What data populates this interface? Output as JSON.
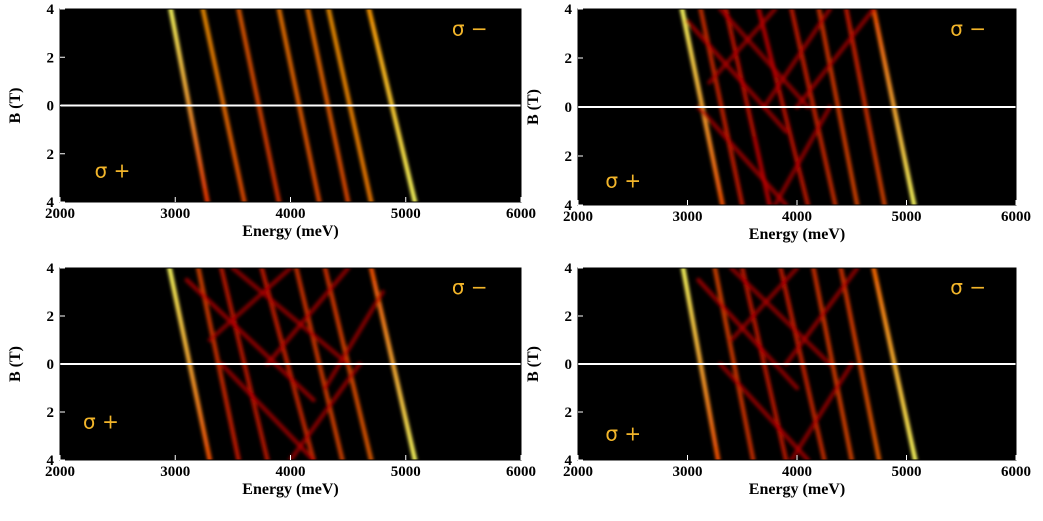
{
  "chart_data": [
    {
      "type": "heatmap",
      "panel": "top-left",
      "xlabel": "Energy (meV)",
      "ylabel": "B (T)",
      "xlim": [
        2000,
        6000
      ],
      "ylim": [
        -4,
        4
      ],
      "xticks": [
        "2000",
        "3000",
        "4000",
        "5000",
        "6000"
      ],
      "yticks": [
        "4",
        "2",
        "0",
        "2",
        "4"
      ],
      "zero_line": true,
      "colormap": "black-red-yellow",
      "annotations": [
        {
          "text": "σ −",
          "x": 5400,
          "y": 3.2
        },
        {
          "text": "σ +",
          "x": 2300,
          "y": -2.7
        }
      ],
      "series": [
        {
          "points": [
            [
              2960,
              4
            ],
            [
              3280,
              -4
            ]
          ],
          "intensity": [
            1.0,
            0.55
          ]
        },
        {
          "points": [
            [
              3240,
              4
            ],
            [
              3600,
              -4
            ]
          ],
          "intensity": [
            0.75,
            0.6
          ]
        },
        {
          "points": [
            [
              3550,
              4
            ],
            [
              3900,
              -4
            ]
          ],
          "intensity": [
            0.65,
            0.55
          ]
        },
        {
          "points": [
            [
              3900,
              4
            ],
            [
              4250,
              -4
            ]
          ],
          "intensity": [
            0.7,
            0.6
          ]
        },
        {
          "points": [
            [
              4150,
              4
            ],
            [
              4500,
              -4
            ]
          ],
          "intensity": [
            0.7,
            0.6
          ]
        },
        {
          "points": [
            [
              4330,
              4
            ],
            [
              4700,
              -4
            ]
          ],
          "intensity": [
            0.75,
            0.7
          ]
        },
        {
          "points": [
            [
              4680,
              4
            ],
            [
              5080,
              -4
            ]
          ],
          "intensity": [
            0.75,
            1.0
          ]
        }
      ]
    },
    {
      "type": "heatmap",
      "panel": "top-right",
      "xlabel": "Energy (meV)",
      "ylabel": "B (T)",
      "xlim": [
        2000,
        6000
      ],
      "ylim": [
        -4,
        4
      ],
      "xticks": [
        "2000",
        "3000",
        "4000",
        "5000",
        "6000"
      ],
      "yticks": [
        "4",
        "2",
        "0",
        "2",
        "4"
      ],
      "zero_line": true,
      "colormap": "black-red-yellow",
      "annotations": [
        {
          "text": "σ −",
          "x": 5400,
          "y": 3.2
        },
        {
          "text": "σ +",
          "x": 2250,
          "y": -3.0
        }
      ],
      "series": [
        {
          "points": [
            [
              2950,
              4
            ],
            [
              3320,
              -4
            ]
          ],
          "intensity": [
            1.0,
            0.6
          ]
        },
        {
          "points": [
            [
              3120,
              4
            ],
            [
              3500,
              -4
            ]
          ],
          "intensity": [
            0.55,
            0.5
          ]
        },
        {
          "points": [
            [
              3350,
              4
            ],
            [
              3750,
              -4
            ]
          ],
          "intensity": [
            0.5,
            0.45
          ]
        },
        {
          "points": [
            [
              3650,
              4
            ],
            [
              4100,
              -4
            ]
          ],
          "intensity": [
            0.45,
            0.5
          ]
        },
        {
          "points": [
            [
              3950,
              4
            ],
            [
              4350,
              -4
            ]
          ],
          "intensity": [
            0.5,
            0.55
          ]
        },
        {
          "points": [
            [
              4200,
              4
            ],
            [
              4550,
              -4
            ]
          ],
          "intensity": [
            0.55,
            0.6
          ]
        },
        {
          "points": [
            [
              4450,
              4
            ],
            [
              4800,
              -4
            ]
          ],
          "intensity": [
            0.5,
            0.6
          ]
        },
        {
          "points": [
            [
              4700,
              4
            ],
            [
              5070,
              -4
            ]
          ],
          "intensity": [
            0.6,
            1.0
          ]
        },
        {
          "points": [
            [
              3000,
              3.5
            ],
            [
              3900,
              -1
            ]
          ],
          "intensity": [
            0.35,
            0.3
          ]
        },
        {
          "points": [
            [
              3300,
              4
            ],
            [
              4100,
              0
            ]
          ],
          "intensity": [
            0.3,
            0.3
          ]
        },
        {
          "points": [
            [
              3800,
              4
            ],
            [
              3200,
              1
            ]
          ],
          "intensity": [
            0.3,
            0.25
          ]
        },
        {
          "points": [
            [
              4300,
              4
            ],
            [
              3700,
              0
            ]
          ],
          "intensity": [
            0.3,
            0.3
          ]
        },
        {
          "points": [
            [
              4700,
              4
            ],
            [
              4000,
              0
            ]
          ],
          "intensity": [
            0.3,
            0.3
          ]
        },
        {
          "points": [
            [
              3100,
              0
            ],
            [
              3900,
              -4
            ]
          ],
          "intensity": [
            0.3,
            0.35
          ]
        },
        {
          "points": [
            [
              4300,
              0
            ],
            [
              3800,
              -4
            ]
          ],
          "intensity": [
            0.3,
            0.3
          ]
        }
      ]
    },
    {
      "type": "heatmap",
      "panel": "bottom-left",
      "xlabel": "Energy (meV)",
      "ylabel": "B (T)",
      "xlim": [
        2000,
        6000
      ],
      "ylim": [
        -4,
        4
      ],
      "xticks": [
        "2000",
        "3000",
        "4000",
        "5000",
        "6000"
      ],
      "yticks": [
        "4",
        "2",
        "0",
        "2",
        "4"
      ],
      "zero_line": true,
      "colormap": "black-red-yellow",
      "annotations": [
        {
          "text": "σ −",
          "x": 5400,
          "y": 3.2
        },
        {
          "text": "σ +",
          "x": 2200,
          "y": -2.4
        }
      ],
      "series": [
        {
          "points": [
            [
              2950,
              4
            ],
            [
              3300,
              -4
            ]
          ],
          "intensity": [
            1.0,
            0.6
          ]
        },
        {
          "points": [
            [
              3200,
              4
            ],
            [
              3550,
              -4
            ]
          ],
          "intensity": [
            0.6,
            0.5
          ]
        },
        {
          "points": [
            [
              3400,
              4
            ],
            [
              3800,
              -4
            ]
          ],
          "intensity": [
            0.5,
            0.5
          ]
        },
        {
          "points": [
            [
              3750,
              4
            ],
            [
              4200,
              -4
            ]
          ],
          "intensity": [
            0.5,
            0.55
          ]
        },
        {
          "points": [
            [
              4050,
              4
            ],
            [
              4450,
              -4
            ]
          ],
          "intensity": [
            0.55,
            0.6
          ]
        },
        {
          "points": [
            [
              4300,
              4
            ],
            [
              4700,
              -4
            ]
          ],
          "intensity": [
            0.55,
            0.65
          ]
        },
        {
          "points": [
            [
              4700,
              4
            ],
            [
              5080,
              -4
            ]
          ],
          "intensity": [
            0.6,
            1.0
          ]
        },
        {
          "points": [
            [
              3100,
              3.5
            ],
            [
              4200,
              -1.5
            ]
          ],
          "intensity": [
            0.35,
            0.3
          ]
        },
        {
          "points": [
            [
              3500,
              4
            ],
            [
              4500,
              0
            ]
          ],
          "intensity": [
            0.3,
            0.3
          ]
        },
        {
          "points": [
            [
              4000,
              4
            ],
            [
              3300,
              1
            ]
          ],
          "intensity": [
            0.3,
            0.25
          ]
        },
        {
          "points": [
            [
              4500,
              4
            ],
            [
              3800,
              0
            ]
          ],
          "intensity": [
            0.3,
            0.3
          ]
        },
        {
          "points": [
            [
              4800,
              3
            ],
            [
              4300,
              -1
            ]
          ],
          "intensity": [
            0.3,
            0.3
          ]
        },
        {
          "points": [
            [
              3400,
              0
            ],
            [
              4200,
              -4
            ]
          ],
          "intensity": [
            0.3,
            0.35
          ]
        },
        {
          "points": [
            [
              4600,
              0
            ],
            [
              4000,
              -4
            ]
          ],
          "intensity": [
            0.3,
            0.3
          ]
        }
      ]
    },
    {
      "type": "heatmap",
      "panel": "bottom-right",
      "xlabel": "Energy (meV)",
      "ylabel": "B (T)",
      "xlim": [
        2000,
        6000
      ],
      "ylim": [
        -4,
        4
      ],
      "xticks": [
        "2000",
        "3000",
        "4000",
        "5000",
        "6000"
      ],
      "yticks": [
        "4",
        "2",
        "0",
        "2",
        "4"
      ],
      "zero_line": true,
      "colormap": "black-red-yellow",
      "annotations": [
        {
          "text": "σ −",
          "x": 5400,
          "y": 3.2
        },
        {
          "text": "σ +",
          "x": 2250,
          "y": -2.9
        }
      ],
      "series": [
        {
          "points": [
            [
              2960,
              4
            ],
            [
              3280,
              -4
            ]
          ],
          "intensity": [
            1.0,
            0.6
          ]
        },
        {
          "points": [
            [
              3250,
              4
            ],
            [
              3600,
              -4
            ]
          ],
          "intensity": [
            0.6,
            0.55
          ]
        },
        {
          "points": [
            [
              3500,
              4
            ],
            [
              3900,
              -4
            ]
          ],
          "intensity": [
            0.5,
            0.5
          ]
        },
        {
          "points": [
            [
              3850,
              4
            ],
            [
              4250,
              -4
            ]
          ],
          "intensity": [
            0.5,
            0.55
          ]
        },
        {
          "points": [
            [
              4150,
              4
            ],
            [
              4500,
              -4
            ]
          ],
          "intensity": [
            0.55,
            0.6
          ]
        },
        {
          "points": [
            [
              4400,
              4
            ],
            [
              4750,
              -4
            ]
          ],
          "intensity": [
            0.55,
            0.65
          ]
        },
        {
          "points": [
            [
              4700,
              4
            ],
            [
              5080,
              -4
            ]
          ],
          "intensity": [
            0.65,
            1.0
          ]
        },
        {
          "points": [
            [
              3100,
              3.5
            ],
            [
              4000,
              -1
            ]
          ],
          "intensity": [
            0.35,
            0.3
          ]
        },
        {
          "points": [
            [
              3400,
              4
            ],
            [
              4300,
              0
            ]
          ],
          "intensity": [
            0.3,
            0.3
          ]
        },
        {
          "points": [
            [
              4000,
              4
            ],
            [
              3400,
              1
            ]
          ],
          "intensity": [
            0.3,
            0.25
          ]
        },
        {
          "points": [
            [
              4550,
              4
            ],
            [
              3900,
              0
            ]
          ],
          "intensity": [
            0.3,
            0.3
          ]
        },
        {
          "points": [
            [
              3300,
              0
            ],
            [
              4100,
              -4
            ]
          ],
          "intensity": [
            0.3,
            0.35
          ]
        },
        {
          "points": [
            [
              4500,
              0
            ],
            [
              3950,
              -4
            ]
          ],
          "intensity": [
            0.3,
            0.3
          ]
        }
      ]
    }
  ]
}
